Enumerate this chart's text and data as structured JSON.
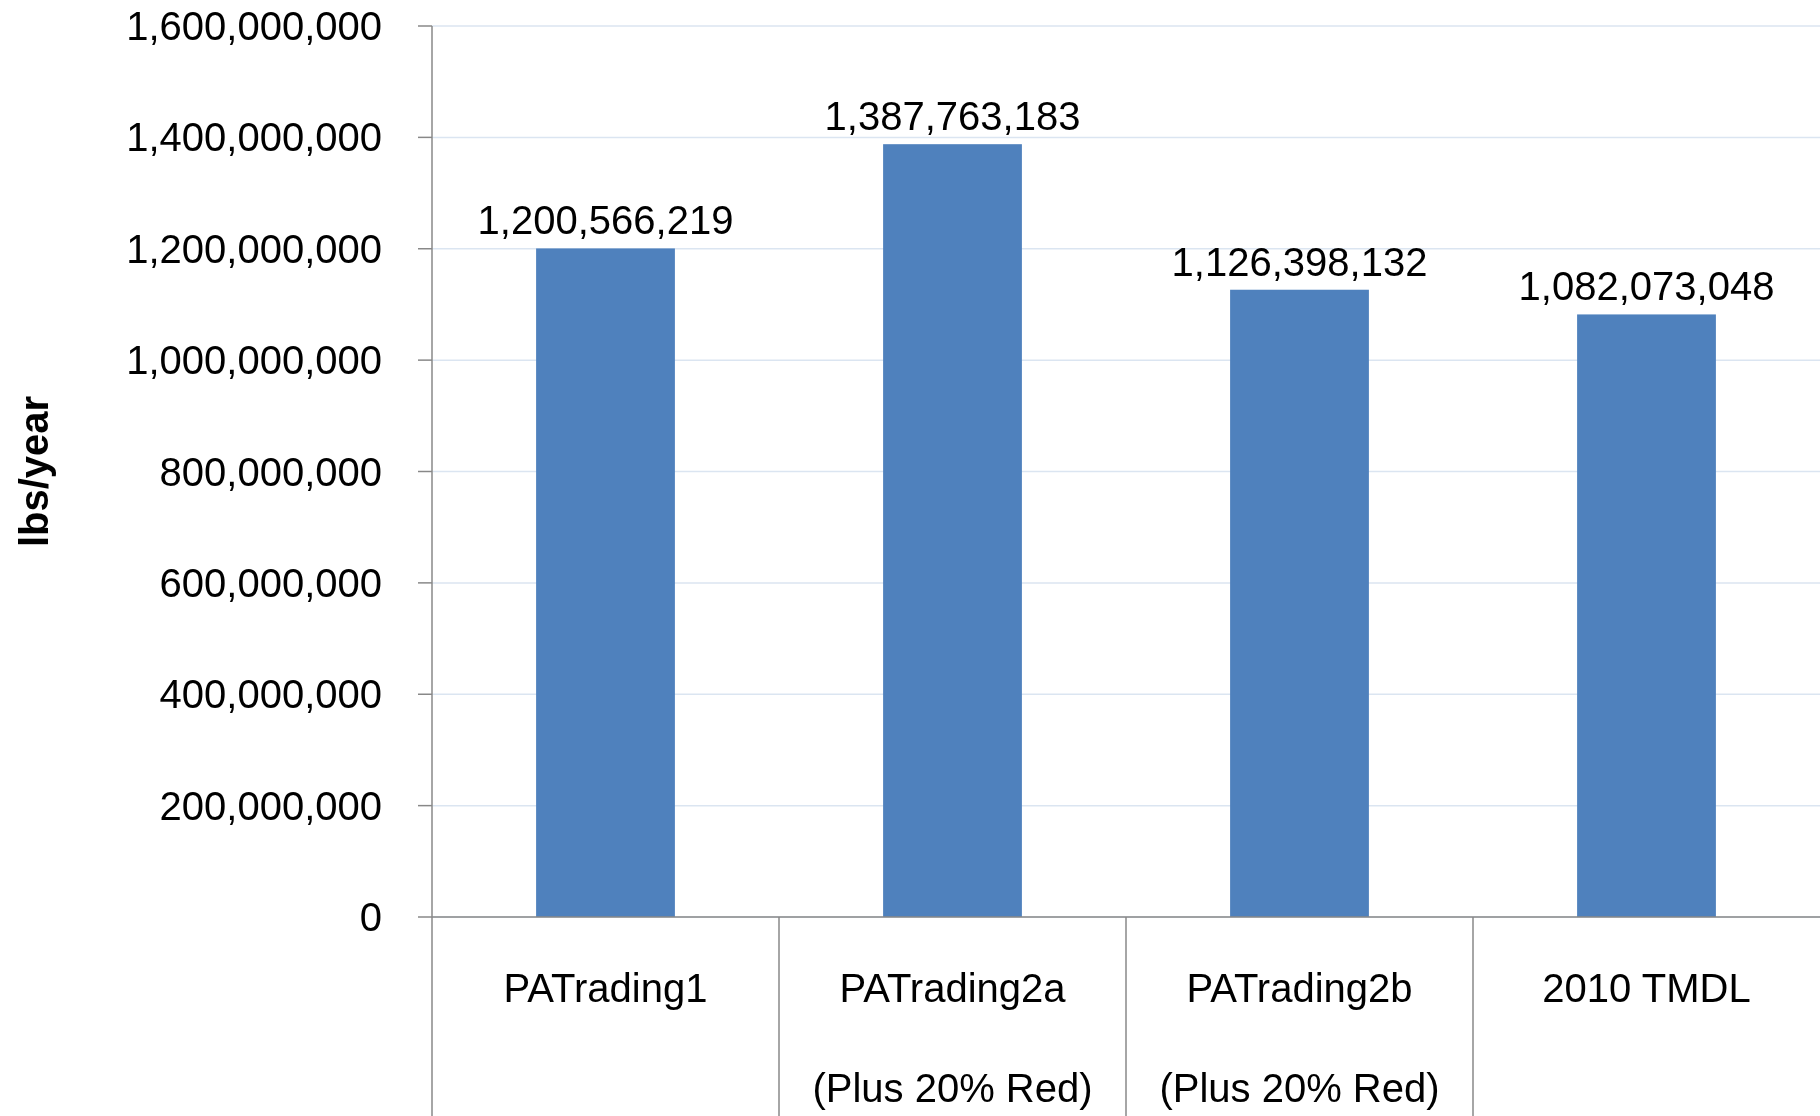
{
  "chart_data": {
    "type": "bar",
    "ylabel": "lbs/year",
    "categories": [
      "PATrading1",
      "PATrading2a\n(Plus 20% Red)",
      "PATrading2b\n(Plus 20% Red)",
      "2010 TMDL"
    ],
    "values": [
      1200566219,
      1387763183,
      1126398132,
      1082073048
    ],
    "value_labels": [
      "1,200,566,219",
      "1,387,763,183",
      "1,126,398,132",
      "1,082,073,048"
    ],
    "color": "#4f81bd",
    "grid": "y",
    "ylim": [
      0,
      1600000000
    ],
    "yticks": [
      0,
      {
        "value": 200000000,
        "label": "200,000,000"
      },
      {
        "value": 400000000,
        "label": "400,000,000"
      },
      {
        "value": 600000000,
        "label": "600,000,000"
      },
      {
        "value": 800000000,
        "label": "800,000,000"
      },
      {
        "value": 1000000000,
        "label": "1,000,000,000"
      },
      {
        "value": 1200000000,
        "label": "1,200,000,000"
      },
      {
        "value": 1400000000,
        "label": "1,400,000,000"
      },
      {
        "value": 1600000000,
        "label": "1,600,000,000"
      }
    ]
  }
}
